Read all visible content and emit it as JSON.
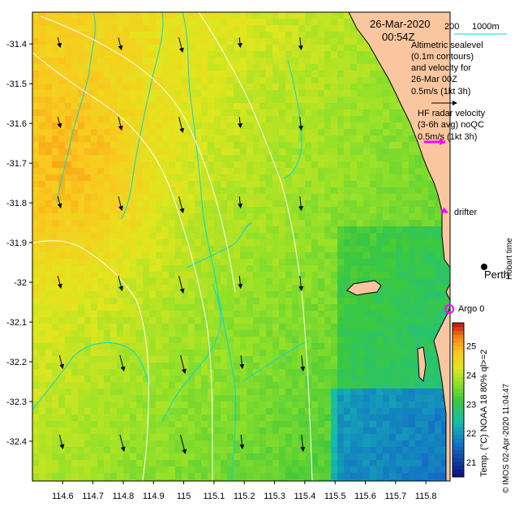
{
  "map": {
    "date": "26-Mar-2020",
    "time": "00:54Z",
    "bathymetry_labels": [
      "200",
      "1000m"
    ],
    "altimetry_lines": [
      "Altimetric sealevel",
      "(0.1m contours)",
      "and velocity for",
      "26-Mar 00Z",
      "0.5m/s (1kt 3h)"
    ],
    "hf_radar_lines": [
      "HF radar velocity",
      "(3-6h avg) noQC",
      "0.5m/s (1kt 3h)"
    ],
    "drifter_label": "drifter",
    "argo_label": "Argo 0",
    "city_label": "Perth",
    "hobart_label": "Hobart time",
    "colorbar_title": "Temp. (°C) NOAA 18 80% ql>=2",
    "credit": "© IMOS 02-Apr-2020 11:04:47",
    "colorbar_ticks": [
      "21",
      "22",
      "23",
      "24",
      "25"
    ],
    "colorbar_range": [
      20.5,
      25.8
    ],
    "lon_ticks": [
      "114.6",
      "114.7",
      "114.8",
      "114.9",
      "115",
      "115.1",
      "115.2",
      "115.3",
      "115.4",
      "115.5",
      "115.6",
      "115.7",
      "115.8"
    ],
    "lat_ticks": [
      "-31.4",
      "-31.5",
      "-31.6",
      "-31.7",
      "-31.8",
      "-31.9",
      "-32",
      "-32.1",
      "-32.2",
      "-32.3",
      "-32.4"
    ],
    "lon_range": [
      114.5,
      115.88
    ],
    "lat_range": [
      -32.5,
      -31.32
    ],
    "colors": {
      "land": "#f9c6a0",
      "coast": "#000000",
      "isobath": "#00d8d8",
      "sealevel_contour": "#ffffff",
      "altimetry_arrow": "#000000",
      "hf_arrow": "#ff00ff",
      "argo": "#ff00ff"
    }
  }
}
